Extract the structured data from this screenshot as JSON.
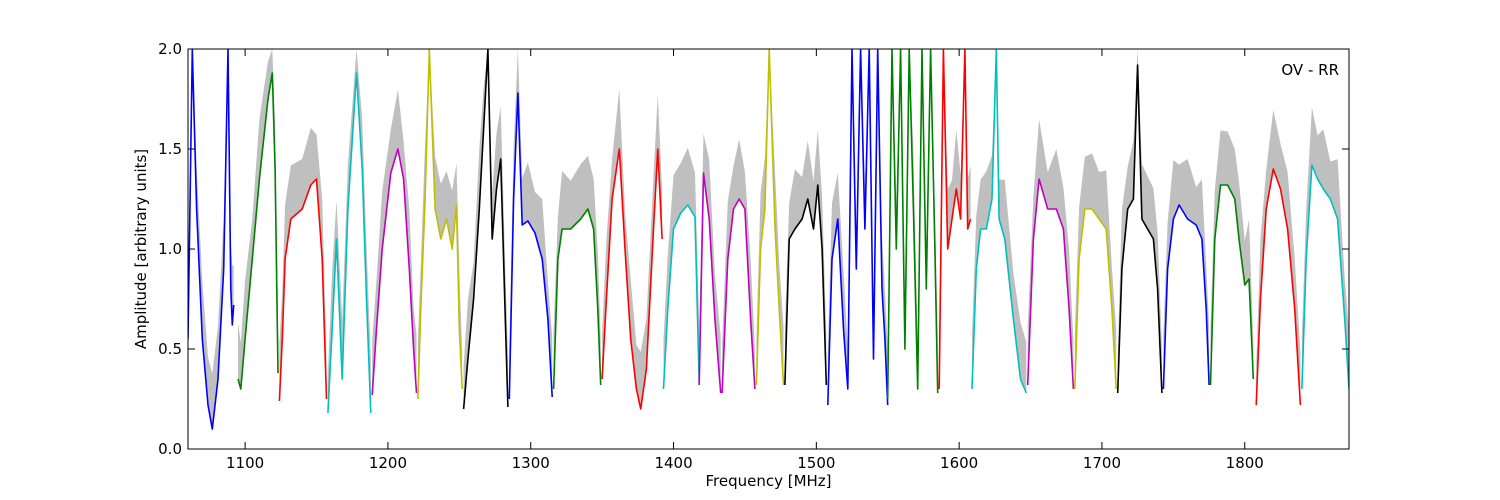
{
  "chart_data": {
    "type": "line",
    "xlabel": "Frequency [MHz]",
    "ylabel": "Amplitude [arbitrary units]",
    "annotation": "OV - RR",
    "xlim": [
      1060,
      1873
    ],
    "ylim": [
      0.0,
      2.0
    ],
    "xticks": [
      "1100",
      "1200",
      "1300",
      "1400",
      "1500",
      "1600",
      "1700",
      "1800"
    ],
    "yticks": [
      "0.0",
      "0.5",
      "1.0",
      "1.5",
      "2.0"
    ],
    "grid": false,
    "envelope_color": "#bfbfbf",
    "series": [
      {
        "color": "#0000ff",
        "x": [
          1060,
          1063,
          1066,
          1070,
          1074,
          1077,
          1081,
          1085,
          1088,
          1090,
          1091,
          1092
        ],
        "y": [
          0.55,
          2.0,
          1.2,
          0.55,
          0.22,
          0.1,
          0.35,
          0.9,
          2.0,
          0.8,
          0.62,
          0.72
        ]
      },
      {
        "color": "#008000",
        "x": [
          1095,
          1097,
          1100,
          1105,
          1110,
          1116,
          1119,
          1121,
          1123
        ],
        "y": [
          0.35,
          0.3,
          0.55,
          0.95,
          1.35,
          1.75,
          1.88,
          1.4,
          0.38
        ]
      },
      {
        "color": "#ff0000",
        "x": [
          1124,
          1126,
          1128,
          1132,
          1140,
          1146,
          1150,
          1154,
          1157
        ],
        "y": [
          0.24,
          0.55,
          0.95,
          1.15,
          1.2,
          1.32,
          1.35,
          0.95,
          0.25
        ]
      },
      {
        "color": "#00bfbf",
        "x": [
          1158,
          1161,
          1164,
          1168,
          1172,
          1178,
          1182,
          1185,
          1188
        ],
        "y": [
          0.18,
          0.6,
          1.05,
          0.35,
          1.2,
          1.88,
          1.4,
          0.75,
          0.18
        ]
      },
      {
        "color": "#bf00bf",
        "x": [
          1189,
          1192,
          1196,
          1202,
          1207,
          1211,
          1215,
          1218,
          1220
        ],
        "y": [
          0.27,
          0.6,
          1.0,
          1.38,
          1.5,
          1.35,
          0.9,
          0.5,
          0.28
        ]
      },
      {
        "color": "#bfbf00",
        "x": [
          1221,
          1223,
          1226,
          1229,
          1233,
          1237,
          1241,
          1245,
          1248,
          1250,
          1252
        ],
        "y": [
          0.25,
          0.7,
          1.25,
          2.0,
          1.2,
          1.05,
          1.15,
          1.0,
          1.22,
          0.6,
          0.3
        ]
      },
      {
        "color": "#000000",
        "x": [
          1253,
          1256,
          1260,
          1264,
          1267,
          1270,
          1273,
          1276,
          1279,
          1282,
          1284
        ],
        "y": [
          0.2,
          0.45,
          0.75,
          1.2,
          1.6,
          2.0,
          1.05,
          1.3,
          1.45,
          0.7,
          0.21
        ]
      },
      {
        "color": "#0000ff",
        "x": [
          1285,
          1288,
          1291,
          1294,
          1298,
          1303,
          1308,
          1312,
          1315
        ],
        "y": [
          0.25,
          1.25,
          1.78,
          1.12,
          1.14,
          1.08,
          0.95,
          0.65,
          0.26
        ]
      },
      {
        "color": "#008000",
        "x": [
          1316,
          1319,
          1322,
          1328,
          1335,
          1340,
          1344,
          1347,
          1349
        ],
        "y": [
          0.3,
          0.95,
          1.1,
          1.1,
          1.15,
          1.2,
          1.1,
          0.7,
          0.32
        ]
      },
      {
        "color": "#ff0000",
        "x": [
          1350,
          1353,
          1357,
          1362,
          1366,
          1370,
          1374,
          1377,
          1381,
          1386,
          1389,
          1392
        ],
        "y": [
          0.35,
          0.75,
          1.25,
          1.5,
          1.0,
          0.55,
          0.3,
          0.2,
          0.4,
          1.1,
          1.5,
          1.05
        ]
      },
      {
        "color": "#00bfbf",
        "x": [
          1393,
          1396,
          1400,
          1405,
          1410,
          1415,
          1418
        ],
        "y": [
          0.3,
          0.7,
          1.1,
          1.18,
          1.22,
          1.16,
          0.32
        ]
      },
      {
        "color": "#bf00bf",
        "x": [
          1418,
          1421,
          1425,
          1429,
          1433
        ],
        "y": [
          0.32,
          1.38,
          1.15,
          0.65,
          0.28
        ]
      },
      {
        "color": "#bf00bf",
        "x": [
          1434,
          1438,
          1442,
          1446,
          1450,
          1454,
          1457
        ],
        "y": [
          0.28,
          0.95,
          1.2,
          1.25,
          1.2,
          0.65,
          0.3
        ]
      },
      {
        "color": "#bfbf00",
        "x": [
          1458,
          1461,
          1464,
          1467,
          1471,
          1474,
          1477
        ],
        "y": [
          0.32,
          1.0,
          1.2,
          2.0,
          1.12,
          0.7,
          0.32
        ]
      },
      {
        "color": "#000000",
        "x": [
          1478,
          1481,
          1485,
          1490,
          1494,
          1498,
          1501,
          1504,
          1507
        ],
        "y": [
          0.32,
          1.05,
          1.1,
          1.15,
          1.25,
          1.1,
          1.32,
          1.0,
          0.32
        ]
      },
      {
        "color": "#0000ff",
        "x": [
          1508,
          1511,
          1515,
          1519,
          1522,
          1525,
          1528,
          1531,
          1534,
          1537,
          1540,
          1543,
          1546,
          1548,
          1550
        ],
        "y": [
          0.22,
          0.95,
          1.15,
          0.6,
          0.3,
          2.0,
          0.9,
          2.0,
          1.1,
          2.0,
          0.45,
          2.0,
          0.8,
          0.55,
          0.22
        ]
      },
      {
        "color": "#008000",
        "x": [
          1550,
          1553,
          1556,
          1559,
          1562,
          1565,
          1568,
          1571,
          1574,
          1577,
          1580,
          1583,
          1585
        ],
        "y": [
          0.25,
          2.0,
          1.0,
          2.0,
          0.5,
          2.0,
          1.2,
          0.3,
          2.0,
          0.8,
          2.0,
          1.0,
          0.28
        ]
      },
      {
        "color": "#ff0000",
        "x": [
          1586,
          1589,
          1592,
          1595,
          1598,
          1601,
          1604,
          1606,
          1608
        ],
        "y": [
          0.3,
          2.0,
          1.0,
          1.15,
          1.3,
          1.15,
          2.0,
          1.1,
          1.15
        ]
      },
      {
        "color": "#00bfbf",
        "x": [
          1609,
          1612,
          1615,
          1619,
          1623,
          1626,
          1628
        ],
        "y": [
          0.3,
          0.9,
          1.1,
          1.1,
          1.25,
          2.0,
          1.15
        ]
      },
      {
        "color": "#00bfbf",
        "x": [
          1628,
          1632,
          1638,
          1643,
          1647
        ],
        "y": [
          1.15,
          1.05,
          0.65,
          0.35,
          0.28
        ]
      },
      {
        "color": "#bf00bf",
        "x": [
          1648,
          1652,
          1656,
          1662,
          1668,
          1673,
          1677,
          1680
        ],
        "y": [
          0.32,
          1.05,
          1.35,
          1.2,
          1.2,
          1.1,
          0.7,
          0.3
        ]
      },
      {
        "color": "#bfbf00",
        "x": [
          1681,
          1684,
          1688,
          1693,
          1698,
          1703,
          1707,
          1710
        ],
        "y": [
          0.3,
          0.95,
          1.2,
          1.2,
          1.15,
          1.1,
          0.7,
          0.3
        ]
      },
      {
        "color": "#000000",
        "x": [
          1711,
          1714,
          1718,
          1722,
          1725,
          1728,
          1732,
          1736,
          1739,
          1742
        ],
        "y": [
          0.28,
          0.9,
          1.2,
          1.25,
          1.92,
          1.15,
          1.1,
          1.05,
          0.8,
          0.28
        ]
      },
      {
        "color": "#0000ff",
        "x": [
          1743,
          1746,
          1750,
          1754,
          1760,
          1766,
          1770,
          1773,
          1775
        ],
        "y": [
          0.3,
          0.9,
          1.15,
          1.22,
          1.15,
          1.12,
          1.05,
          0.7,
          0.32
        ]
      },
      {
        "color": "#008000",
        "x": [
          1776,
          1779,
          1783,
          1788,
          1793,
          1796,
          1800,
          1803,
          1806
        ],
        "y": [
          0.32,
          1.05,
          1.32,
          1.32,
          1.25,
          1.05,
          0.82,
          0.85,
          0.35
        ]
      },
      {
        "color": "#ff0000",
        "x": [
          1808,
          1811,
          1815,
          1820,
          1825,
          1830,
          1835,
          1839
        ],
        "y": [
          0.22,
          0.75,
          1.2,
          1.4,
          1.3,
          1.1,
          0.7,
          0.22
        ]
      },
      {
        "color": "#00bfbf",
        "x": [
          1840,
          1843,
          1847,
          1851,
          1855,
          1860,
          1865,
          1870,
          1873
        ],
        "y": [
          0.3,
          0.95,
          1.42,
          1.35,
          1.3,
          1.25,
          1.15,
          0.65,
          0.3
        ]
      }
    ]
  }
}
